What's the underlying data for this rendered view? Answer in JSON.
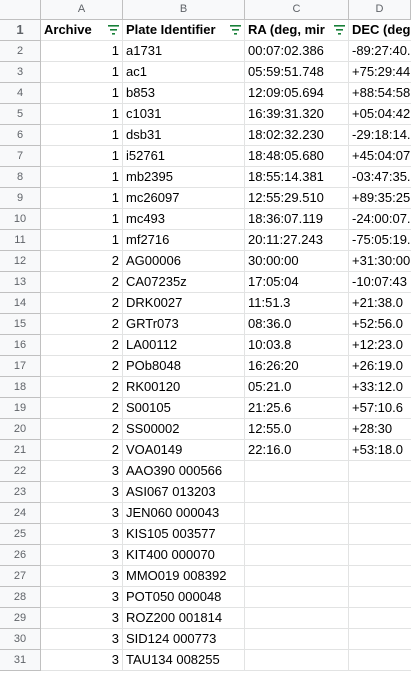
{
  "columns": [
    "A",
    "B",
    "C",
    "D"
  ],
  "headers": {
    "archive": "Archive",
    "plate_identifier": "Plate Identifier",
    "ra": "RA (deg, mir",
    "dec": "DEC (deg"
  },
  "rows": [
    {
      "n": "2",
      "archive": "1",
      "plate": "a1731",
      "ra": "00:07:02.386",
      "dec": "-89:27:40."
    },
    {
      "n": "3",
      "archive": "1",
      "plate": "ac1",
      "ra": "05:59:51.748",
      "dec": "+75:29:44"
    },
    {
      "n": "4",
      "archive": "1",
      "plate": "b853",
      "ra": "12:09:05.694",
      "dec": "+88:54:58"
    },
    {
      "n": "5",
      "archive": "1",
      "plate": "c1031",
      "ra": "16:39:31.320",
      "dec": "+05:04:42"
    },
    {
      "n": "6",
      "archive": "1",
      "plate": "dsb31",
      "ra": "18:02:32.230",
      "dec": "-29:18:14."
    },
    {
      "n": "7",
      "archive": "1",
      "plate": "i52761",
      "ra": "18:48:05.680",
      "dec": "+45:04:07"
    },
    {
      "n": "8",
      "archive": "1",
      "plate": "mb2395",
      "ra": "18:55:14.381",
      "dec": "-03:47:35."
    },
    {
      "n": "9",
      "archive": "1",
      "plate": "mc26097",
      "ra": "12:55:29.510",
      "dec": "+89:35:25"
    },
    {
      "n": "10",
      "archive": "1",
      "plate": "mc493",
      "ra": "18:36:07.119",
      "dec": "-24:00:07."
    },
    {
      "n": "11",
      "archive": "1",
      "plate": "mf2716",
      "ra": "20:11:27.243",
      "dec": "-75:05:19."
    },
    {
      "n": "12",
      "archive": "2",
      "plate": "AG00006",
      "ra": "30:00:00",
      "dec": "+31:30:00"
    },
    {
      "n": "13",
      "archive": "2",
      "plate": "CA07235z",
      "ra": "17:05:04",
      "dec": "-10:07:43"
    },
    {
      "n": "14",
      "archive": "2",
      "plate": "DRK0027",
      "ra": "11:51.3",
      "dec": "+21:38.0"
    },
    {
      "n": "15",
      "archive": "2",
      "plate": "GRTr073",
      "ra": "08:36.0",
      "dec": "+52:56.0"
    },
    {
      "n": "16",
      "archive": "2",
      "plate": "LA00112",
      "ra": "10:03.8",
      "dec": "+12:23.0"
    },
    {
      "n": "17",
      "archive": "2",
      "plate": "POb8048",
      "ra": "16:26:20",
      "dec": "+26:19.0"
    },
    {
      "n": "18",
      "archive": "2",
      "plate": "RK00120",
      "ra": "05:21.0",
      "dec": "+33:12.0"
    },
    {
      "n": "19",
      "archive": "2",
      "plate": "S00105",
      "ra": "21:25.6",
      "dec": "+57:10.6"
    },
    {
      "n": "20",
      "archive": "2",
      "plate": "SS00002",
      "ra": "12:55.0",
      "dec": "+28:30"
    },
    {
      "n": "21",
      "archive": "2",
      "plate": "VOA0149",
      "ra": "22:16.0",
      "dec": "+53:18.0"
    },
    {
      "n": "22",
      "archive": "3",
      "plate": "AAO390 000566",
      "ra": "",
      "dec": ""
    },
    {
      "n": "23",
      "archive": "3",
      "plate": "ASI067 013203",
      "ra": "",
      "dec": ""
    },
    {
      "n": "24",
      "archive": "3",
      "plate": "JEN060 000043",
      "ra": "",
      "dec": ""
    },
    {
      "n": "25",
      "archive": "3",
      "plate": "KIS105 003577",
      "ra": "",
      "dec": ""
    },
    {
      "n": "26",
      "archive": "3",
      "plate": "KIT400 000070",
      "ra": "",
      "dec": ""
    },
    {
      "n": "27",
      "archive": "3",
      "plate": "MMO019 008392",
      "ra": "",
      "dec": ""
    },
    {
      "n": "28",
      "archive": "3",
      "plate": "POT050 000048",
      "ra": "",
      "dec": ""
    },
    {
      "n": "29",
      "archive": "3",
      "plate": "ROZ200 001814",
      "ra": "",
      "dec": ""
    },
    {
      "n": "30",
      "archive": "3",
      "plate": "SID124 000773",
      "ra": "",
      "dec": ""
    },
    {
      "n": "31",
      "archive": "3",
      "plate": "TAU134 008255",
      "ra": "",
      "dec": ""
    }
  ],
  "header_row_number": "1",
  "colors": {
    "grid": "#e2e3e3",
    "header_bg": "#f8f9fa",
    "header_text": "#5f6368",
    "filter_icon": "#188038"
  }
}
